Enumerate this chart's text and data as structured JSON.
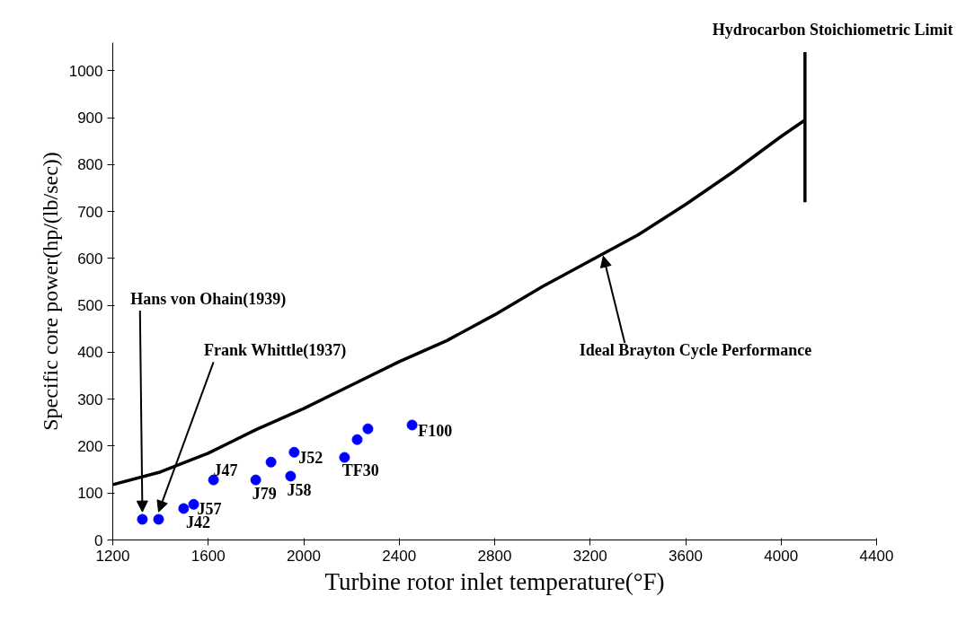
{
  "chart_data": {
    "type": "scatter",
    "xlabel": "Turbine rotor inlet temperature(°F)",
    "ylabel": "Specific core power(hp/(lb/sec))",
    "xlim": [
      1200,
      4400
    ],
    "xticks": [
      1200,
      1600,
      2000,
      2400,
      2800,
      3200,
      3600,
      4000,
      4400
    ],
    "ylim": [
      0,
      1060
    ],
    "yticks": [
      0,
      100,
      200,
      300,
      400,
      500,
      600,
      700,
      800,
      900,
      1000
    ],
    "grid": false,
    "marker": "circle",
    "series": [
      {
        "color": "#0000ff",
        "x": [
          1324,
          1392,
          1497,
          1539,
          1622,
          1799,
          1863,
          1945,
          1960,
          2171,
          2224,
          2269,
          2454
        ],
        "values": [
          44,
          44,
          67,
          76,
          128,
          128,
          166,
          136,
          187,
          176,
          214,
          237,
          245
        ]
      },
      {
        "type": "line",
        "color": "#000000",
        "marker": "none",
        "line_style": "solid",
        "x": [
          1200,
          1400,
          1600,
          1800,
          2000,
          2200,
          2400,
          2600,
          2800,
          3000,
          3200,
          3400,
          3600,
          3800,
          4000,
          4100
        ],
        "values": [
          118,
          145,
          185,
          235,
          280,
          330,
          380,
          425,
          480,
          540,
          595,
          650,
          715,
          785,
          860,
          895
        ]
      },
      {
        "type": "line",
        "color": "#000000",
        "marker": "none",
        "line_style": "solid",
        "x": [
          4100,
          4100
        ],
        "values": [
          720,
          1040
        ]
      }
    ],
    "annotations": [
      {
        "text": "Hans von Ohain(1939)",
        "x": 1324,
        "y": 44
      },
      {
        "text": "Frank Whittle(1937)",
        "x": 1392,
        "y": 44
      },
      {
        "text": "J42",
        "x": 1497,
        "y": 67
      },
      {
        "text": "J57",
        "x": 1539,
        "y": 76
      },
      {
        "text": "J47",
        "x": 1622,
        "y": 128
      },
      {
        "text": "J79",
        "x": 1799,
        "y": 128
      },
      {
        "text": "J58",
        "x": 1945,
        "y": 136
      },
      {
        "text": "J52",
        "x": 1960,
        "y": 187
      },
      {
        "text": "TF30",
        "x": 2171,
        "y": 176
      },
      {
        "text": "F100",
        "x": 2454,
        "y": 245
      },
      {
        "text": "Ideal Brayton Cycle Performance",
        "x": 3255,
        "y": 605
      },
      "Hydrocarbon Stoichiometric Limit"
    ]
  }
}
